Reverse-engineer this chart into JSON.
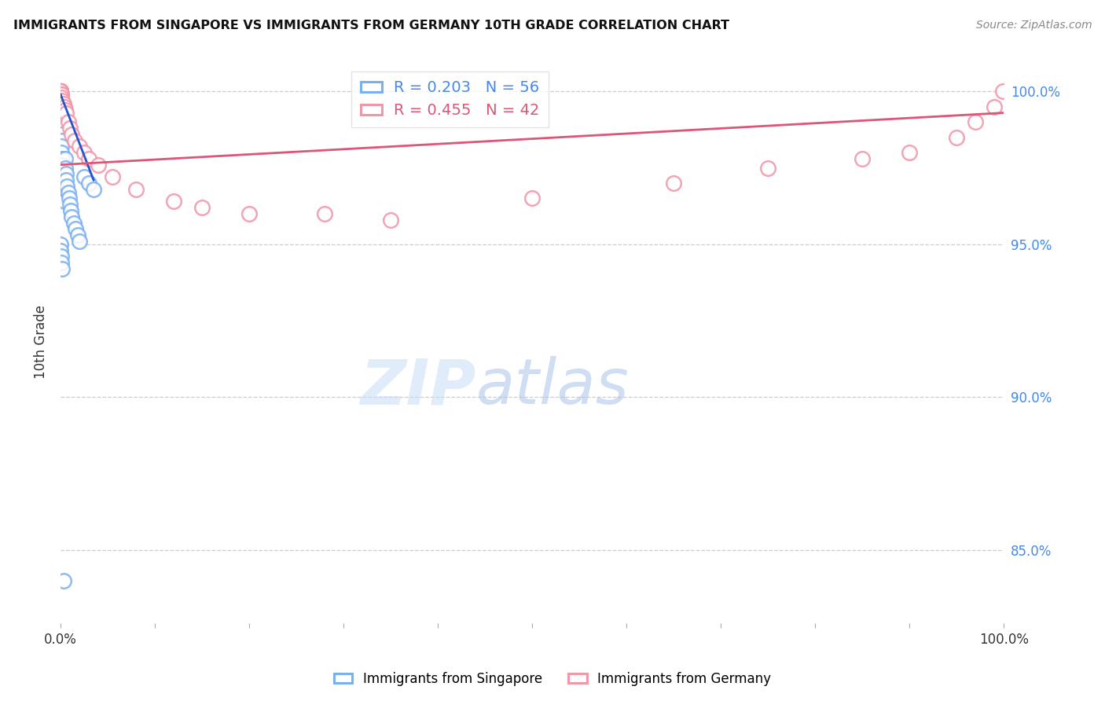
{
  "title": "IMMIGRANTS FROM SINGAPORE VS IMMIGRANTS FROM GERMANY 10TH GRADE CORRELATION CHART",
  "source": "Source: ZipAtlas.com",
  "ylabel": "10th Grade",
  "y_tick_labels_right": [
    "85.0%",
    "90.0%",
    "95.0%",
    "100.0%"
  ],
  "y_tick_values": [
    0.85,
    0.9,
    0.95,
    1.0
  ],
  "x_range": [
    0.0,
    1.0
  ],
  "y_range": [
    0.826,
    1.01
  ],
  "singapore_color": "#7aaff0",
  "germany_color": "#f097a8",
  "singapore_trend_color": "#2255cc",
  "germany_trend_color": "#dd5577",
  "legend_singapore_R": "0.203",
  "legend_singapore_N": "56",
  "legend_germany_R": "0.455",
  "legend_germany_N": "42",
  "watermark_zip": "ZIP",
  "watermark_atlas": "atlas",
  "sg_x": [
    0.0,
    0.0,
    0.0,
    0.0,
    0.0,
    0.0,
    0.0,
    0.0,
    0.0,
    0.0,
    0.0,
    0.0,
    0.0,
    0.0,
    0.0,
    0.0,
    0.0,
    0.0,
    0.0,
    0.0,
    0.001,
    0.001,
    0.001,
    0.001,
    0.001,
    0.002,
    0.002,
    0.002,
    0.003,
    0.003,
    0.003,
    0.004,
    0.004,
    0.005,
    0.005,
    0.006,
    0.006,
    0.007,
    0.008,
    0.009,
    0.01,
    0.011,
    0.012,
    0.014,
    0.016,
    0.018,
    0.02,
    0.025,
    0.03,
    0.035,
    0.0,
    0.0,
    0.001,
    0.001,
    0.002,
    0.003
  ],
  "sg_y": [
    1.0,
    1.0,
    1.0,
    1.0,
    0.999,
    0.999,
    0.999,
    0.998,
    0.998,
    0.997,
    0.997,
    0.996,
    0.996,
    0.995,
    0.994,
    0.993,
    0.992,
    0.991,
    0.99,
    0.989,
    0.988,
    0.986,
    0.984,
    0.982,
    0.98,
    0.978,
    0.976,
    0.974,
    0.972,
    0.97,
    0.968,
    0.966,
    0.964,
    0.978,
    0.975,
    0.973,
    0.971,
    0.969,
    0.967,
    0.965,
    0.963,
    0.961,
    0.959,
    0.957,
    0.955,
    0.953,
    0.951,
    0.972,
    0.97,
    0.968,
    0.95,
    0.948,
    0.946,
    0.944,
    0.942,
    0.84
  ],
  "de_x": [
    0.0,
    0.0,
    0.0,
    0.0,
    0.0,
    0.0,
    0.0,
    0.0,
    0.0,
    0.0,
    0.001,
    0.001,
    0.001,
    0.002,
    0.003,
    0.004,
    0.005,
    0.006,
    0.008,
    0.01,
    0.012,
    0.015,
    0.02,
    0.025,
    0.03,
    0.04,
    0.055,
    0.08,
    0.12,
    0.15,
    0.2,
    0.28,
    0.35,
    0.5,
    0.65,
    0.75,
    0.85,
    0.9,
    0.95,
    0.97,
    0.99,
    0.999
  ],
  "de_y": [
    1.0,
    1.0,
    1.0,
    1.0,
    1.0,
    1.0,
    1.0,
    1.0,
    1.0,
    1.0,
    0.999,
    0.999,
    0.998,
    0.997,
    0.996,
    0.995,
    0.994,
    0.993,
    0.99,
    0.988,
    0.986,
    0.984,
    0.982,
    0.98,
    0.978,
    0.976,
    0.972,
    0.968,
    0.964,
    0.962,
    0.96,
    0.96,
    0.958,
    0.965,
    0.97,
    0.975,
    0.978,
    0.98,
    0.985,
    0.99,
    0.995,
    1.0
  ],
  "sg_trend_x0": 0.0,
  "sg_trend_x1": 0.035,
  "sg_trend_y0": 0.999,
  "sg_trend_y1": 0.971,
  "de_trend_x0": 0.0,
  "de_trend_x1": 1.0,
  "de_trend_y0": 0.976,
  "de_trend_y1": 0.993
}
